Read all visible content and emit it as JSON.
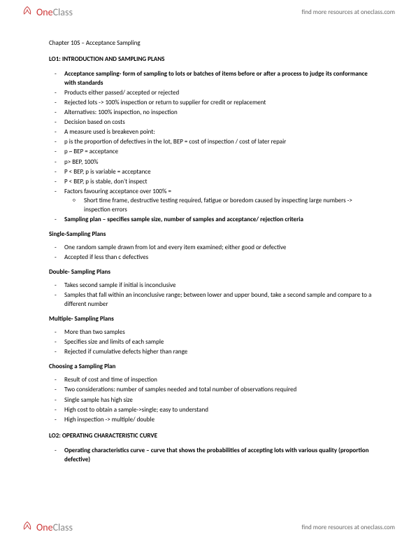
{
  "brand": {
    "one": "One",
    "class": "Class"
  },
  "header_link": "find more resources at oneclass.com",
  "footer_link": "find more resources at oneclass.com",
  "chapter_title": "Chapter 10S – Acceptance Sampling",
  "lo1": {
    "heading": "LO1: INTRODUCTION AND SAMPLING PLANS",
    "items": [
      {
        "bold": true,
        "text": "Acceptance sampling- form of sampling to lots or batches of items before or after a process to judge its conformance with standards"
      },
      {
        "text": "Products either passed/ accepted or rejected"
      },
      {
        "text": "Rejected lots -> 100% inspection or return to supplier for credit or replacement"
      },
      {
        "text": "Alternatives: 100% inspection, no inspection"
      },
      {
        "text": "Decision based on costs"
      },
      {
        "text": "A measure used is breakeven point:"
      },
      {
        "text": "p is the proportion of defectives in the lot, BEP = cost of inspection / cost of later repair"
      },
      {
        "text": "p ~ BEP = acceptance"
      },
      {
        "text": "p> BEP, 100%"
      },
      {
        "text": "P < BEP, p is variable = acceptance"
      },
      {
        "text": "P < BEP, p is stable, don't inspect"
      },
      {
        "text": "Factors favouring acceptance over 100% =",
        "sub": [
          "Short time frame, destructive testing required, fatigue or boredom caused by inspecting large numbers -> inspection errors"
        ]
      },
      {
        "bold": true,
        "text": "Sampling plan – specifies sample size, number of samples and acceptance/ rejection criteria"
      }
    ]
  },
  "single": {
    "heading": "Single-Sampling Plans",
    "items": [
      {
        "text": "One random sample drawn from lot and every item examined; either good or defective"
      },
      {
        "text": "Accepted if less than c defectives"
      }
    ]
  },
  "double": {
    "heading": "Double- Sampling Plans",
    "items": [
      {
        "text": "Takes second sample if initial is inconclusive"
      },
      {
        "text": "Samples that fall within an inconclusive range; between lower and upper bound, take a second sample and compare to a different number"
      }
    ]
  },
  "multiple": {
    "heading": "Multiple- Sampling Plans",
    "items": [
      {
        "text": "More than two samples"
      },
      {
        "text": "Specifies size and limits of each sample"
      },
      {
        "text": "Rejected if cumulative defects higher than range"
      }
    ]
  },
  "choosing": {
    "heading": "Choosing a Sampling Plan",
    "items": [
      {
        "text": "Result of cost and time of inspection"
      },
      {
        "text": "Two considerations: number of samples needed and total number of observations required"
      },
      {
        "text": "Single sample has high size"
      },
      {
        "text": "High cost to obtain a sample->single; easy to understand"
      },
      {
        "text": "High inspection -> multiple/ double"
      }
    ]
  },
  "lo2": {
    "heading": "LO2: OPERATING CHARACTERISTIC CURVE",
    "items": [
      {
        "bold": true,
        "text": "Operating characteristics curve – curve that shows the probabilities of accepting lots with various quality (proportion defective)"
      }
    ]
  }
}
